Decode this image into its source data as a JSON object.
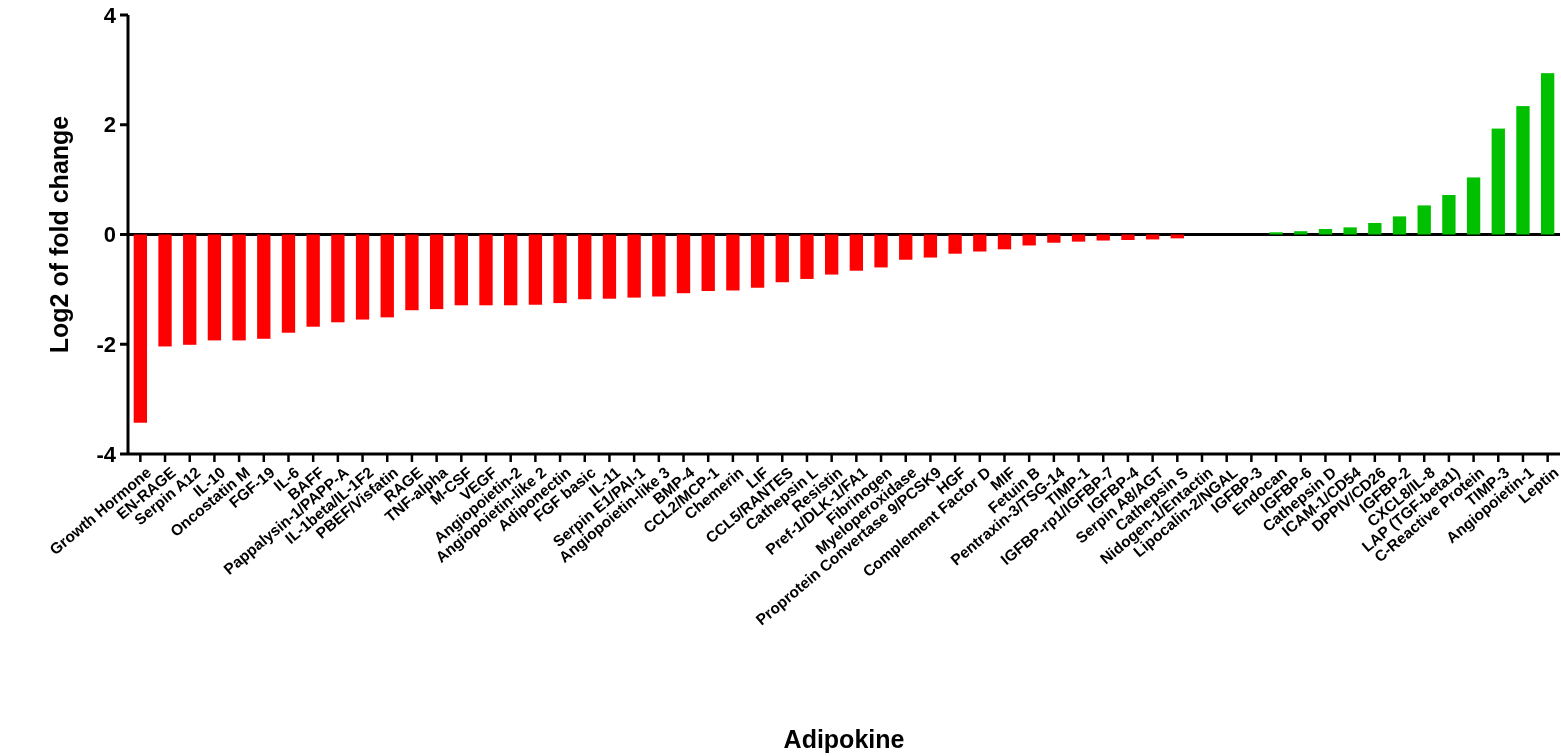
{
  "chart_data": {
    "type": "bar",
    "xlabel": "Adipokine",
    "ylabel": "Log2 of fold change",
    "categories": [
      "Growth Hormone",
      "EN-RAGE",
      "Serpin A12",
      "IL-10",
      "Oncostatin M",
      "FGF-19",
      "IL-6",
      "BAFF",
      "Pappalysin-1/PAPP-A",
      "IL-1beta/IL-1F2",
      "PBEF/Visfatin",
      "RAGE",
      "TNF-alpha",
      "M-CSF",
      "VEGF",
      "Angiopoietin-2",
      "Angiopoietin-like 2",
      "Adiponectin",
      "FGF basic",
      "IL-11",
      "Serpin E1/PAI-1",
      "Angiopoietin-like 3",
      "BMP-4",
      "CCL2/MCP-1",
      "Chemerin",
      "LIF",
      "CCL5/RANTES",
      "Cathepsin L",
      "Resistin",
      "Pref-1/DLK-1/FA1",
      "Fibrinogen",
      "Myeloperoxidase",
      "Proprotein Convertase 9/PCSK9",
      "HGF",
      "Complement Factor D",
      "MIF",
      "Fetuin B",
      "Pentraxin-3/TSG-14",
      "TIMP-1",
      "IGFBP-rp1/IGFBP-7",
      "IGFBP-4",
      "Serpin A8/AGT",
      "Cathepsin S",
      "Nidogen-1/Entactin",
      "Lipocalin-2/NGAL",
      "IGFBP-3",
      "Endocan",
      "IGFBP-6",
      "Cathepsin D",
      "ICAM-1/CD54",
      "DPPIV/CD26",
      "IGFBP-2",
      "CXCL8/IL-8",
      "LAP (TGF-beta1)",
      "C-Reactive Protein",
      "TIMP-3",
      "Angiopoietin-1",
      "Leptin"
    ],
    "values": [
      -3.43,
      -2.04,
      -2.01,
      -1.93,
      -1.93,
      -1.9,
      -1.79,
      -1.68,
      -1.6,
      -1.55,
      -1.51,
      -1.38,
      -1.36,
      -1.29,
      -1.29,
      -1.29,
      -1.28,
      -1.25,
      -1.18,
      -1.17,
      -1.15,
      -1.13,
      -1.07,
      -1.03,
      -1.02,
      -0.97,
      -0.87,
      -0.81,
      -0.73,
      -0.66,
      -0.6,
      -0.46,
      -0.42,
      -0.35,
      -0.31,
      -0.27,
      -0.2,
      -0.15,
      -0.13,
      -0.11,
      -0.1,
      -0.09,
      -0.07,
      0,
      0,
      0,
      0.04,
      0.06,
      0.1,
      0.13,
      0.21,
      0.33,
      0.53,
      0.72,
      1.04,
      1.93,
      2.34,
      2.94
    ],
    "colors": [
      "#ff0000",
      "#ff0000",
      "#ff0000",
      "#ff0000",
      "#ff0000",
      "#ff0000",
      "#ff0000",
      "#ff0000",
      "#ff0000",
      "#ff0000",
      "#ff0000",
      "#ff0000",
      "#ff0000",
      "#ff0000",
      "#ff0000",
      "#ff0000",
      "#ff0000",
      "#ff0000",
      "#ff0000",
      "#ff0000",
      "#ff0000",
      "#ff0000",
      "#ff0000",
      "#ff0000",
      "#ff0000",
      "#ff0000",
      "#ff0000",
      "#ff0000",
      "#ff0000",
      "#ff0000",
      "#ff0000",
      "#ff0000",
      "#ff0000",
      "#ff0000",
      "#ff0000",
      "#ff0000",
      "#ff0000",
      "#ff0000",
      "#ff0000",
      "#ff0000",
      "#ff0000",
      "#ff0000",
      "#ff0000",
      "#ff0000",
      "#ff0000",
      "#00c000",
      "#00c000",
      "#00c000",
      "#00c000",
      "#00c000",
      "#00c000",
      "#00c000",
      "#00c000",
      "#00c000",
      "#00c000",
      "#00c000",
      "#00c000",
      "#00c000"
    ],
    "ylim": [
      -4,
      4
    ],
    "yticks": [
      -4,
      -2,
      0,
      2,
      4
    ],
    "ref_lines": [
      {
        "axis": "y",
        "value": 0,
        "color": "#000000"
      }
    ]
  }
}
